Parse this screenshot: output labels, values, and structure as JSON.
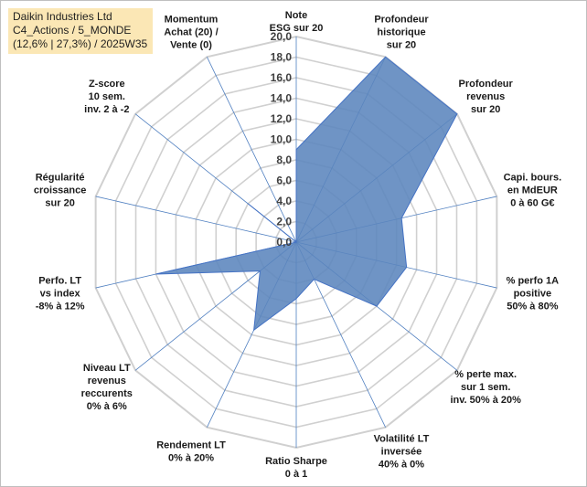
{
  "title": {
    "line1": "Daikin Industries Ltd",
    "line2": "C4_Actions / 5_MONDE",
    "line3": "(12,6% | 27,3%) / 2025W35"
  },
  "colors": {
    "area_fill": "#5b85bd",
    "area_stroke": "#4472c4",
    "grid": "#d0d0d0",
    "spokes": "#4f7fc0",
    "title_bg": "#fbe7b5"
  },
  "chart_data": {
    "type": "radar",
    "title": "",
    "rmin": 0,
    "rmax": 20,
    "ticks": [
      "0,0",
      "2,0",
      "4,0",
      "6,0",
      "8,0",
      "10,0",
      "12,0",
      "14,0",
      "16,0",
      "18,0",
      "20,0"
    ],
    "grid": true,
    "legend": "none",
    "categories": [
      [
        "Note",
        "ESG sur 20"
      ],
      [
        "Profondeur",
        "historique",
        "sur 20"
      ],
      [
        "Profondeur",
        "revenus",
        "sur 20"
      ],
      [
        "Capi. bours.",
        "en MdEUR",
        "0 à 60 G€"
      ],
      [
        "% perfo 1A",
        "positive",
        "50% à 80%"
      ],
      [
        "% perte max.",
        "sur 1 sem.",
        "inv. 50% à 20%"
      ],
      [
        "Volatilité LT",
        "inversée",
        "40% à 0%"
      ],
      [
        "Ratio Sharpe",
        "0 à 1"
      ],
      [
        "Rendement LT",
        "0% à 20%"
      ],
      [
        "Niveau LT",
        "revenus",
        "reccurents",
        "0% à 6%"
      ],
      [
        "Perfo. LT",
        "vs index",
        "-8% à 12%"
      ],
      [
        "Régularité",
        "croissance",
        "sur 20"
      ],
      [
        "Z-score",
        "10 sem.",
        "inv. 2 à -2"
      ],
      [
        "Momentum",
        "Achat (20) /",
        "Vente (0)"
      ]
    ],
    "series": [
      {
        "values": [
          9.0,
          20.0,
          20.0,
          10.5,
          11.0,
          10.0,
          4.0,
          5.5,
          9.5,
          4.5,
          14.0,
          0.0,
          6.0,
          0.0
        ]
      }
    ]
  }
}
